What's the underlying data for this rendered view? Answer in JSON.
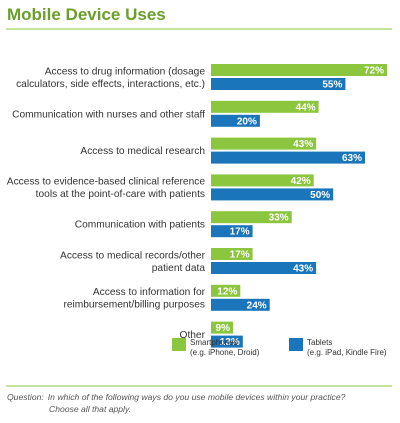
{
  "chart_data": {
    "type": "bar",
    "orientation": "horizontal",
    "title": "Mobile Device Uses",
    "categories": [
      [
        "Access to drug information (dosage",
        "calculators, side effects, interactions, etc.)"
      ],
      [
        "Communication with nurses and other staff"
      ],
      [
        "Access to medical research"
      ],
      [
        "Access to evidence-based clinical reference",
        "tools at the point-of-care with patients"
      ],
      [
        "Communication with patients"
      ],
      [
        "Access to medical records/other",
        "patient data"
      ],
      [
        "Access to information for",
        "reimbursement/billing purposes"
      ],
      [
        "Other"
      ]
    ],
    "series": [
      {
        "name": "Smartphones",
        "name_detail": "(e.g. iPhone, Droid)",
        "color": "#8cc63f",
        "values": [
          72,
          44,
          43,
          42,
          33,
          17,
          12,
          9
        ]
      },
      {
        "name": "Tablets",
        "name_detail": "(e.g. iPad, Kindle Fire)",
        "color": "#1a75bb",
        "values": [
          55,
          20,
          63,
          50,
          17,
          43,
          24,
          13
        ]
      }
    ],
    "value_suffix": "%",
    "xlim": [
      0,
      72
    ],
    "grid": false,
    "legend_position": "bottom"
  },
  "legend": {
    "smartphones": {
      "name": "Smartphones",
      "detail": "(e.g. iPhone, Droid)"
    },
    "tablets": {
      "name": "Tablets",
      "detail": "(e.g. iPad, Kindle Fire)"
    }
  },
  "question": {
    "label": "Question:",
    "line1": "In which of the following ways do you use mobile devices within your practice?",
    "line2": "Choose all that apply."
  }
}
